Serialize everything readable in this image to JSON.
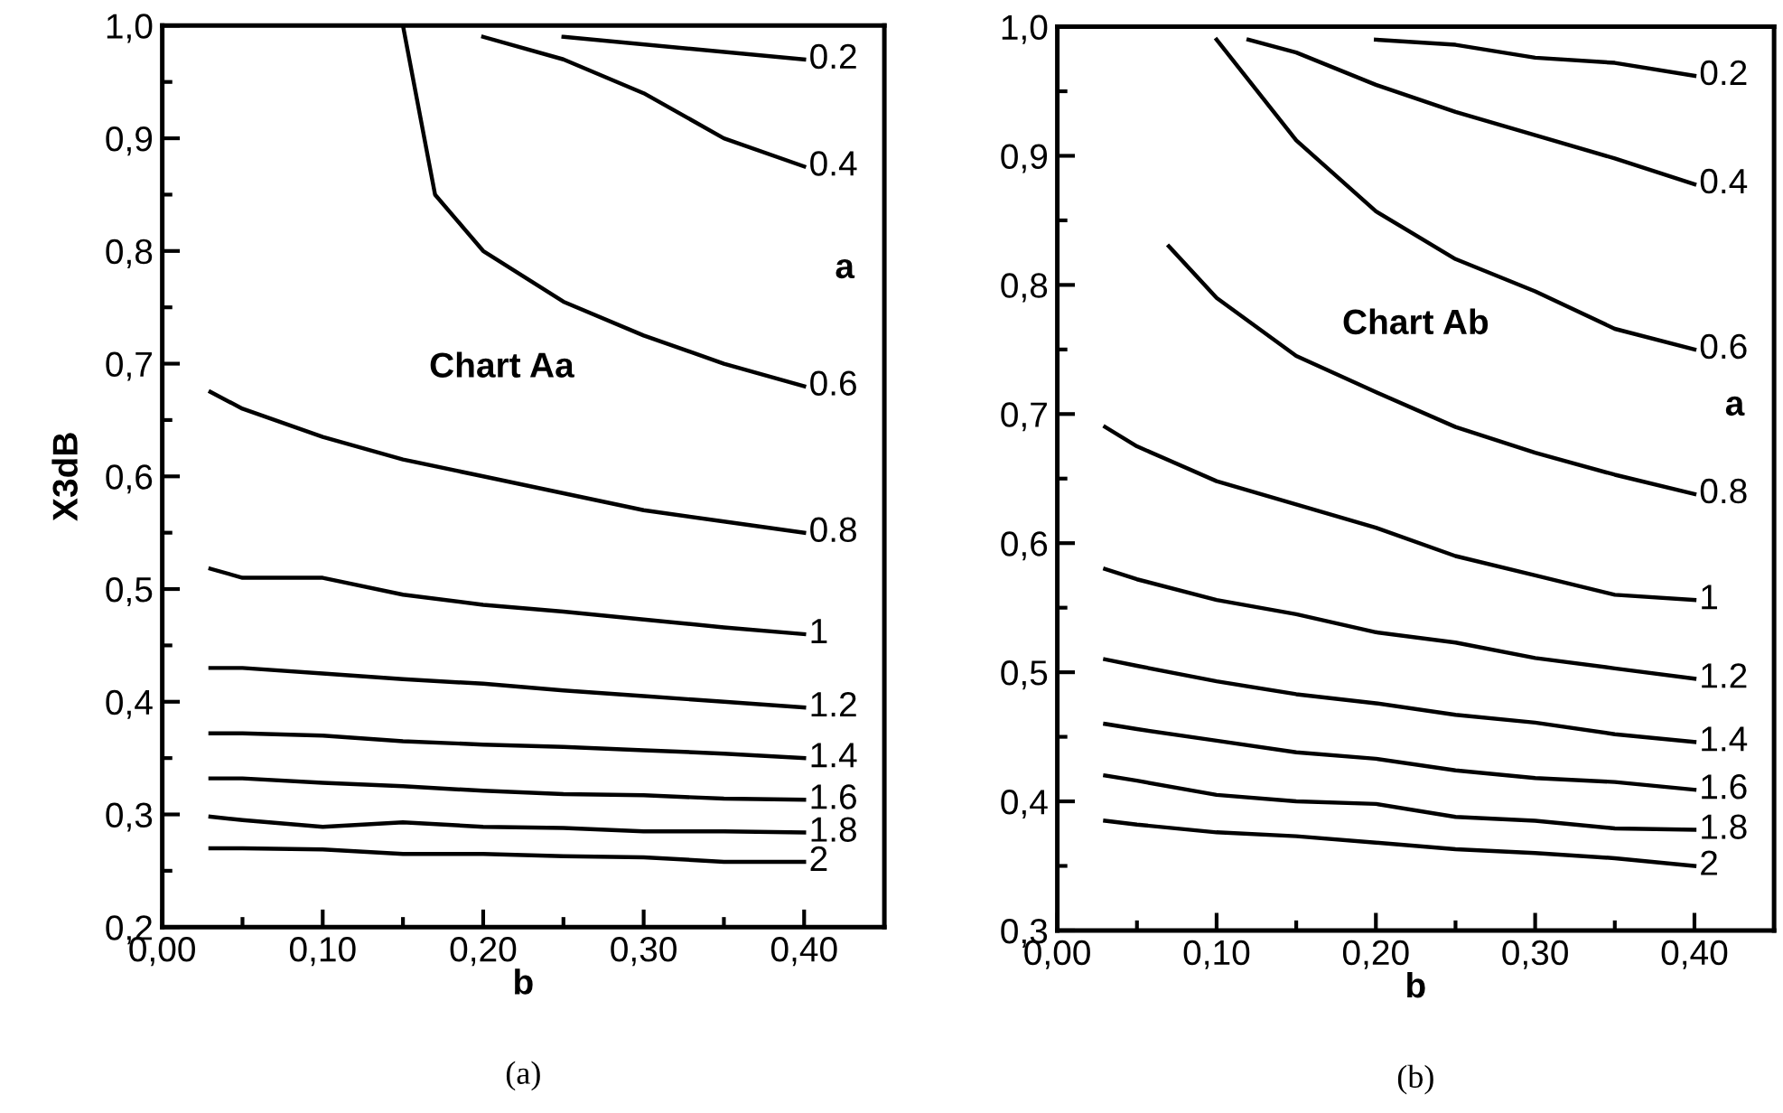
{
  "chart_data": [
    {
      "type": "line",
      "xlabel": "b",
      "ylabel": "X3dB",
      "annotations": [
        "Chart Aa",
        "a",
        "(a)"
      ],
      "xlim": [
        0,
        0.45
      ],
      "ylim": [
        0.2,
        1.0
      ],
      "xticks": [
        {
          "value": 0,
          "label": "0,00"
        },
        {
          "value": 0.05,
          "label": null
        },
        {
          "value": 0.1,
          "label": "0,10"
        },
        {
          "value": 0.15,
          "label": null
        },
        {
          "value": 0.2,
          "label": "0,20"
        },
        {
          "value": 0.25,
          "label": null
        },
        {
          "value": 0.3,
          "label": "0,30"
        },
        {
          "value": 0.35,
          "label": null
        },
        {
          "value": 0.4,
          "label": "0,40"
        }
      ],
      "yticks": [
        {
          "value": 0.2,
          "label": "0,2"
        },
        {
          "value": 0.25,
          "label": null
        },
        {
          "value": 0.3,
          "label": "0,3"
        },
        {
          "value": 0.35,
          "label": null
        },
        {
          "value": 0.4,
          "label": "0,4"
        },
        {
          "value": 0.45,
          "label": null
        },
        {
          "value": 0.5,
          "label": "0,5"
        },
        {
          "value": 0.55,
          "label": null
        },
        {
          "value": 0.6,
          "label": "0,6"
        },
        {
          "value": 0.65,
          "label": null
        },
        {
          "value": 0.7,
          "label": "0,7"
        },
        {
          "value": 0.75,
          "label": null
        },
        {
          "value": 0.8,
          "label": "0,8"
        },
        {
          "value": 0.85,
          "label": null
        },
        {
          "value": 0.9,
          "label": "0,9"
        },
        {
          "value": 0.95,
          "label": null
        },
        {
          "value": 1.0,
          "label": "1,0"
        }
      ],
      "grid": false,
      "legend": false,
      "marker": "none",
      "line_style": "solid",
      "series": [
        {
          "name": "0.2",
          "color": "#000000",
          "x": [
            0.25,
            0.4
          ],
          "values": [
            0.99,
            0.97
          ]
        },
        {
          "name": "0.4",
          "color": "#000000",
          "x": [
            0.2,
            0.25,
            0.3,
            0.35,
            0.4
          ],
          "values": [
            0.99,
            0.97,
            0.94,
            0.9,
            0.875
          ]
        },
        {
          "name": "0.6",
          "color": "#000000",
          "x": [
            0.15,
            0.17,
            0.2,
            0.25,
            0.3,
            0.35,
            0.4
          ],
          "values": [
            1.0,
            0.85,
            0.8,
            0.755,
            0.725,
            0.7,
            0.68
          ]
        },
        {
          "name": "0.8",
          "color": "#000000",
          "x": [
            0.03,
            0.05,
            0.1,
            0.15,
            0.2,
            0.25,
            0.3,
            0.35,
            0.4
          ],
          "values": [
            0.675,
            0.66,
            0.635,
            0.615,
            0.6,
            0.585,
            0.57,
            0.56,
            0.55
          ]
        },
        {
          "name": "1",
          "color": "#000000",
          "x": [
            0.03,
            0.05,
            0.1,
            0.15,
            0.2,
            0.25,
            0.3,
            0.35,
            0.4
          ],
          "values": [
            0.518,
            0.51,
            0.51,
            0.495,
            0.486,
            0.48,
            0.473,
            0.466,
            0.46
          ]
        },
        {
          "name": "1.2",
          "color": "#000000",
          "x": [
            0.03,
            0.05,
            0.1,
            0.15,
            0.2,
            0.25,
            0.3,
            0.35,
            0.4
          ],
          "values": [
            0.43,
            0.43,
            0.425,
            0.42,
            0.416,
            0.41,
            0.405,
            0.4,
            0.395
          ]
        },
        {
          "name": "1.4",
          "color": "#000000",
          "x": [
            0.03,
            0.05,
            0.1,
            0.15,
            0.2,
            0.25,
            0.3,
            0.35,
            0.4
          ],
          "values": [
            0.372,
            0.372,
            0.37,
            0.365,
            0.362,
            0.36,
            0.357,
            0.354,
            0.35
          ]
        },
        {
          "name": "1.6",
          "color": "#000000",
          "x": [
            0.03,
            0.05,
            0.1,
            0.15,
            0.2,
            0.25,
            0.3,
            0.35,
            0.4
          ],
          "values": [
            0.332,
            0.332,
            0.328,
            0.325,
            0.321,
            0.318,
            0.317,
            0.314,
            0.313
          ]
        },
        {
          "name": "1.8",
          "color": "#000000",
          "x": [
            0.03,
            0.05,
            0.1,
            0.15,
            0.2,
            0.25,
            0.3,
            0.35,
            0.4
          ],
          "values": [
            0.298,
            0.295,
            0.289,
            0.293,
            0.289,
            0.288,
            0.285,
            0.285,
            0.284
          ]
        },
        {
          "name": "2",
          "color": "#000000",
          "x": [
            0.03,
            0.05,
            0.1,
            0.15,
            0.2,
            0.25,
            0.3,
            0.35,
            0.4
          ],
          "values": [
            0.27,
            0.27,
            0.269,
            0.265,
            0.265,
            0.263,
            0.262,
            0.258,
            0.258
          ]
        }
      ]
    },
    {
      "type": "line",
      "xlabel": "b",
      "annotations": [
        "Chart Ab",
        "a",
        "(b)"
      ],
      "xlim": [
        0,
        0.45
      ],
      "ylim": [
        0.3,
        1.0
      ],
      "xticks": [
        {
          "value": 0,
          "label": "0,00"
        },
        {
          "value": 0.05,
          "label": null
        },
        {
          "value": 0.1,
          "label": "0,10"
        },
        {
          "value": 0.15,
          "label": null
        },
        {
          "value": 0.2,
          "label": "0,20"
        },
        {
          "value": 0.25,
          "label": null
        },
        {
          "value": 0.3,
          "label": "0,30"
        },
        {
          "value": 0.35,
          "label": null
        },
        {
          "value": 0.4,
          "label": "0,40"
        }
      ],
      "yticks": [
        {
          "value": 0.3,
          "label": "0,3"
        },
        {
          "value": 0.35,
          "label": null
        },
        {
          "value": 0.4,
          "label": "0,4"
        },
        {
          "value": 0.45,
          "label": null
        },
        {
          "value": 0.5,
          "label": "0,5"
        },
        {
          "value": 0.55,
          "label": null
        },
        {
          "value": 0.6,
          "label": "0,6"
        },
        {
          "value": 0.65,
          "label": null
        },
        {
          "value": 0.7,
          "label": "0,7"
        },
        {
          "value": 0.75,
          "label": null
        },
        {
          "value": 0.8,
          "label": "0,8"
        },
        {
          "value": 0.85,
          "label": null
        },
        {
          "value": 0.9,
          "label": "0,9"
        },
        {
          "value": 0.95,
          "label": null
        },
        {
          "value": 1.0,
          "label": "1,0"
        }
      ],
      "grid": false,
      "legend": false,
      "marker": "none",
      "line_style": "solid",
      "series": [
        {
          "name": "0.2",
          "color": "#000000",
          "x": [
            0.2,
            0.25,
            0.3,
            0.35,
            0.4
          ],
          "values": [
            0.99,
            0.986,
            0.976,
            0.972,
            0.962
          ]
        },
        {
          "name": "0.4",
          "color": "#000000",
          "x": [
            0.12,
            0.15,
            0.2,
            0.25,
            0.3,
            0.35,
            0.4
          ],
          "values": [
            0.99,
            0.98,
            0.955,
            0.934,
            0.916,
            0.898,
            0.878
          ]
        },
        {
          "name": "0.6",
          "color": "#000000",
          "x": [
            0.1,
            0.15,
            0.2,
            0.25,
            0.3,
            0.35,
            0.4
          ],
          "values": [
            0.99,
            0.912,
            0.857,
            0.82,
            0.795,
            0.766,
            0.75
          ]
        },
        {
          "name": "0.8",
          "color": "#000000",
          "x": [
            0.07,
            0.1,
            0.15,
            0.2,
            0.25,
            0.3,
            0.35,
            0.4
          ],
          "values": [
            0.83,
            0.79,
            0.745,
            0.717,
            0.69,
            0.67,
            0.653,
            0.638
          ]
        },
        {
          "name": "1",
          "color": "#000000",
          "x": [
            0.03,
            0.05,
            0.1,
            0.15,
            0.2,
            0.25,
            0.3,
            0.35,
            0.4
          ],
          "values": [
            0.69,
            0.675,
            0.648,
            0.63,
            0.612,
            0.59,
            0.575,
            0.56,
            0.556
          ]
        },
        {
          "name": "1.2",
          "color": "#000000",
          "x": [
            0.03,
            0.05,
            0.1,
            0.15,
            0.2,
            0.25,
            0.3,
            0.35,
            0.4
          ],
          "values": [
            0.58,
            0.572,
            0.556,
            0.545,
            0.531,
            0.523,
            0.511,
            0.503,
            0.495
          ]
        },
        {
          "name": "1.4",
          "color": "#000000",
          "x": [
            0.03,
            0.05,
            0.1,
            0.15,
            0.2,
            0.25,
            0.3,
            0.35,
            0.4
          ],
          "values": [
            0.51,
            0.505,
            0.493,
            0.483,
            0.476,
            0.467,
            0.461,
            0.452,
            0.446
          ]
        },
        {
          "name": "1.6",
          "color": "#000000",
          "x": [
            0.03,
            0.05,
            0.1,
            0.15,
            0.2,
            0.25,
            0.3,
            0.35,
            0.4
          ],
          "values": [
            0.46,
            0.456,
            0.447,
            0.438,
            0.433,
            0.424,
            0.418,
            0.415,
            0.409
          ]
        },
        {
          "name": "1.8",
          "color": "#000000",
          "x": [
            0.03,
            0.05,
            0.1,
            0.15,
            0.2,
            0.25,
            0.3,
            0.35,
            0.4
          ],
          "values": [
            0.42,
            0.416,
            0.405,
            0.4,
            0.398,
            0.388,
            0.385,
            0.379,
            0.378
          ]
        },
        {
          "name": "2",
          "color": "#000000",
          "x": [
            0.03,
            0.05,
            0.1,
            0.15,
            0.2,
            0.25,
            0.3,
            0.35,
            0.4
          ],
          "values": [
            0.385,
            0.382,
            0.376,
            0.373,
            0.368,
            0.363,
            0.36,
            0.356,
            0.35
          ]
        }
      ]
    }
  ]
}
